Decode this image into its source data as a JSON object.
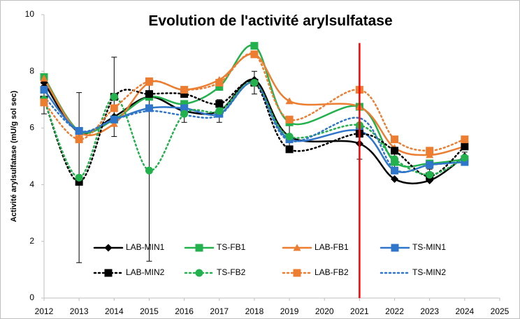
{
  "chart_data": {
    "type": "line",
    "title": "Evolution de l'activité arylsulfatase",
    "y_label": "Activité arylsulfatase (mU/g sol sec)",
    "x": [
      2012,
      2013,
      2014,
      2015,
      2016,
      2017,
      2018,
      2019,
      2021,
      2022,
      2023,
      2024
    ],
    "xlim": [
      2012,
      2025
    ],
    "xticks": [
      2012,
      2013,
      2014,
      2015,
      2016,
      2017,
      2018,
      2019,
      2020,
      2021,
      2022,
      2023,
      2024,
      2025
    ],
    "ylim": [
      0,
      10
    ],
    "yticks": [
      0,
      2,
      4,
      6,
      8,
      10
    ],
    "grid": false,
    "smooth": true,
    "vline": {
      "x": 2021,
      "y": [
        0,
        9
      ],
      "color": "#ff0000"
    },
    "series": [
      {
        "name": "LAB-MIN1",
        "color": "#000000",
        "marker": "diamond",
        "dash": false,
        "values": [
          7.6,
          5.85,
          6.4,
          7.1,
          6.6,
          6.6,
          7.7,
          5.7,
          5.45,
          4.2,
          4.15,
          5.0
        ]
      },
      {
        "name": "TS-FB1",
        "color": "#22b14c",
        "marker": "square",
        "dash": false,
        "values": [
          7.8,
          5.9,
          6.3,
          7.1,
          6.85,
          7.45,
          8.9,
          6.2,
          6.75,
          4.8,
          4.75,
          4.9
        ]
      },
      {
        "name": "LAB-FB1",
        "color": "#ed7d31",
        "marker": "triangle",
        "dash": false,
        "values": [
          7.75,
          5.85,
          6.15,
          7.6,
          7.35,
          7.7,
          8.6,
          6.95,
          6.75,
          5.3,
          5.05,
          5.35
        ]
      },
      {
        "name": "TS-MIN1",
        "color": "#2f75c9",
        "marker": "square",
        "dash": false,
        "values": [
          7.35,
          5.9,
          6.3,
          6.7,
          6.7,
          6.5,
          7.6,
          5.6,
          5.9,
          4.5,
          4.7,
          4.8
        ]
      },
      {
        "name": "LAB-MIN2",
        "color": "#000000",
        "marker": "square",
        "dash": true,
        "values": [
          7.0,
          4.1,
          7.1,
          7.2,
          7.2,
          6.85,
          7.6,
          5.25,
          5.8,
          5.2,
          4.3,
          5.35
        ]
      },
      {
        "name": "TS-FB2",
        "color": "#22b14c",
        "marker": "circle",
        "dash": true,
        "values": [
          7.0,
          4.25,
          7.1,
          4.5,
          6.5,
          6.6,
          7.6,
          5.7,
          6.1,
          4.9,
          4.35,
          4.95
        ],
        "errors": [
          0.5,
          3.0,
          1.4,
          3.2,
          0.3,
          0.4,
          0.4,
          0.5,
          1.2,
          0.3,
          0.2,
          0.2
        ]
      },
      {
        "name": "LAB-FB2",
        "color": "#ed7d31",
        "marker": "square",
        "dash": true,
        "values": [
          6.9,
          5.6,
          6.7,
          7.65,
          7.35,
          7.6,
          8.6,
          6.3,
          7.35,
          5.6,
          5.2,
          5.6
        ]
      },
      {
        "name": "TS-MIN2",
        "color": "#2f75c9",
        "marker": "none",
        "dash": true,
        "values": [
          7.1,
          5.9,
          6.3,
          6.6,
          6.45,
          6.45,
          7.6,
          5.55,
          6.35,
          4.55,
          4.7,
          4.8
        ]
      }
    ]
  }
}
